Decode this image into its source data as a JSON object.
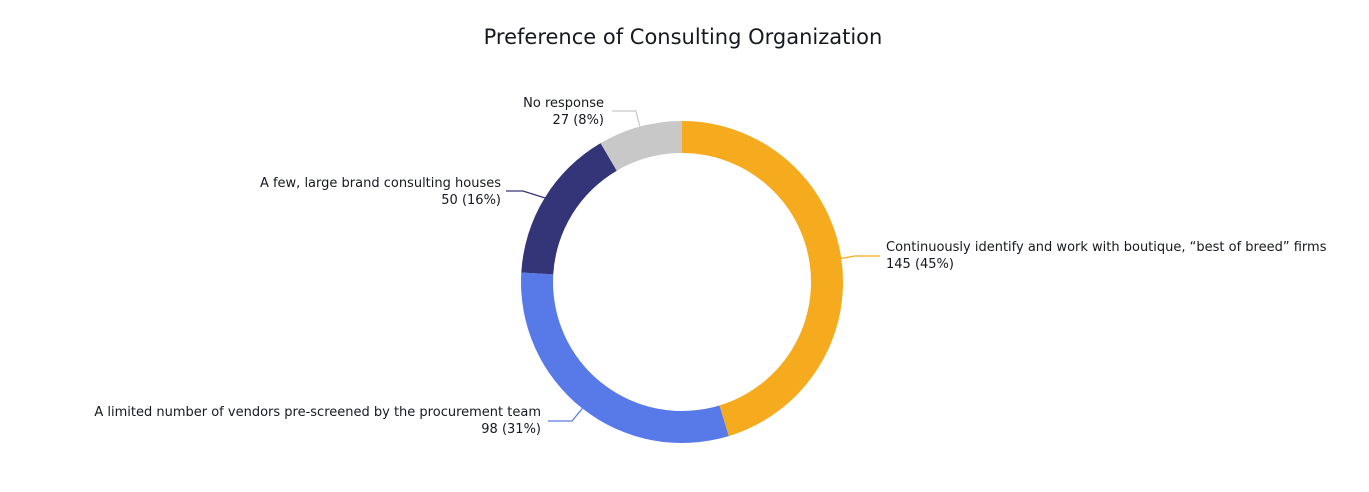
{
  "chart_data": {
    "type": "pie",
    "variant": "donut",
    "title": "Preference of Consulting Organization",
    "start": "top",
    "direction": "clockwise",
    "slices": [
      {
        "label": "Continuously identify and work with boutique, “best of breed” firms",
        "value": 145,
        "value_label": "145 (45%)",
        "color": "#F5AB1D"
      },
      {
        "label": "A limited number of vendors pre-screened by the procurement team",
        "value": 98,
        "value_label": "98 (31%)",
        "color": "#5879E8"
      },
      {
        "label": "A few, large brand consulting houses",
        "value": 50,
        "value_label": "50 (16%)",
        "color": "#343579"
      },
      {
        "label": "No response",
        "value": 27,
        "value_label": "27 (8%)",
        "color": "#C8C8C8"
      }
    ]
  }
}
